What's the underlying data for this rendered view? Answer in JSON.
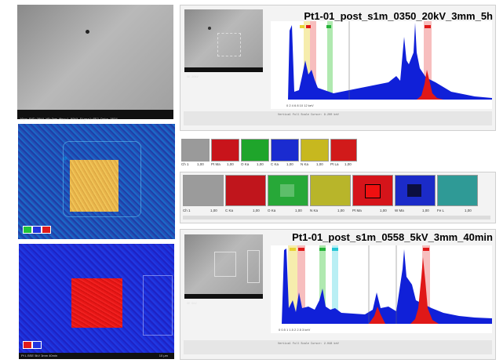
{
  "panels": {
    "sem_top": {
      "bar_text": "10μm  EHT=20kV  WD=3mm  Mag=1.00kX  Signal=SE2  Date 2024"
    },
    "sem_inset_a": {
      "bar_text": "SE  20kV"
    },
    "sem_inset_b": {
      "bar_text": "SE  5kV"
    },
    "map_bottom": {
      "bar_text": "Pt L  BSE  5kV  3mm  40min",
      "scale_text": "10 μm"
    }
  },
  "spectra": {
    "top": {
      "title": "Pt1-01_post_s1m_0350_20kV_3mm_5h",
      "status_text": "Vertical Full Scale  Cursor: 9.200 keV",
      "axis_text": "0     2     4     6     8     10     12   keV"
    },
    "bottom": {
      "title": "Pt1-01_post_s1m_0558_5kV_3mm_40min",
      "status_text": "Vertical Full Scale  Cursor: 2.048 keV",
      "axis_text": "0     0.5     1     1.5     2     2.5     3   keV"
    }
  },
  "element_maps_small": [
    {
      "label": "Ch 1",
      "value": "1,00",
      "color": "#9a9a9a"
    },
    {
      "label": "Pt Ma",
      "value": "1,00",
      "color": "#c8141b"
    },
    {
      "label": "O Ka",
      "value": "1,00",
      "color": "#1fa52b"
    },
    {
      "label": "C Ka",
      "value": "1,00",
      "color": "#1a2bd0"
    },
    {
      "label": "N Ka",
      "value": "1,00",
      "color": "#c7b81f"
    },
    {
      "label": "Pt La",
      "value": "1,00",
      "color": "#d11a1a"
    }
  ],
  "element_maps_large": [
    {
      "label": "Ch 1",
      "value": "1,00",
      "color": "#9b9b9b"
    },
    {
      "label": "C Ka",
      "value": "1,00",
      "color": "#c0151c"
    },
    {
      "label": "O Ka",
      "value": "1,00",
      "color": "#27a838"
    },
    {
      "label": "N Ka",
      "value": "1,00",
      "color": "#b8b52a"
    },
    {
      "label": "Pt Ma",
      "value": "1,00",
      "color": "#d5141a"
    },
    {
      "label": "W Ma",
      "value": "1,00",
      "color": "#1b2bc8"
    },
    {
      "label": "Fe L",
      "value": "1,00",
      "color": "#2f9a96"
    }
  ],
  "colors": {
    "spectrum_fill": "#1020d8",
    "spectrum_overlay": "#e01818",
    "band_yellow": "#f2e68a",
    "band_red": "#f4a3a3",
    "band_green": "#8ee08e",
    "band_cyan": "#9be8f0"
  }
}
